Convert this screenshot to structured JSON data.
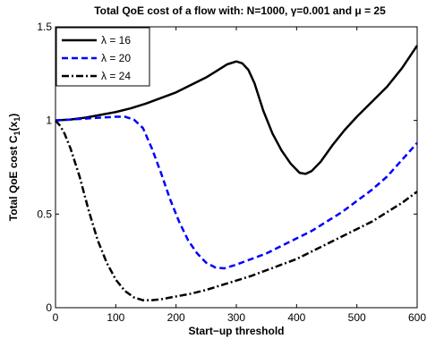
{
  "chart_data": {
    "type": "line",
    "title": "Total QoE cost of a flow with: N=1000, γ=0.001 and μ = 25",
    "xlabel": "Start−up threshold",
    "ylabel": "Total QoE cost C",
    "ylabel_sub": "1",
    "ylabel_arg": "(x",
    "ylabel_arg_sub": "1",
    "ylabel_close": ")",
    "xlim": [
      0,
      600
    ],
    "ylim": [
      0,
      1.5
    ],
    "xticks": [
      0,
      100,
      200,
      300,
      400,
      500,
      600
    ],
    "yticks": [
      0,
      0.5,
      1,
      1.5
    ],
    "xtick_labels": [
      "0",
      "100",
      "200",
      "300",
      "400",
      "500",
      "600"
    ],
    "ytick_labels": [
      "0",
      "0.5",
      "1",
      "1.5"
    ],
    "legend_position": "top-left",
    "series": [
      {
        "name": "λ = 16",
        "color": "#000000",
        "style": "solid",
        "points": [
          [
            0,
            1.0
          ],
          [
            25,
            1.005
          ],
          [
            50,
            1.015
          ],
          [
            75,
            1.03
          ],
          [
            100,
            1.045
          ],
          [
            125,
            1.065
          ],
          [
            150,
            1.09
          ],
          [
            175,
            1.12
          ],
          [
            200,
            1.15
          ],
          [
            225,
            1.19
          ],
          [
            250,
            1.23
          ],
          [
            270,
            1.27
          ],
          [
            285,
            1.3
          ],
          [
            300,
            1.315
          ],
          [
            310,
            1.305
          ],
          [
            320,
            1.27
          ],
          [
            330,
            1.2
          ],
          [
            345,
            1.05
          ],
          [
            360,
            0.93
          ],
          [
            375,
            0.84
          ],
          [
            390,
            0.77
          ],
          [
            405,
            0.72
          ],
          [
            415,
            0.715
          ],
          [
            425,
            0.73
          ],
          [
            440,
            0.78
          ],
          [
            460,
            0.87
          ],
          [
            480,
            0.95
          ],
          [
            500,
            1.02
          ],
          [
            525,
            1.1
          ],
          [
            550,
            1.18
          ],
          [
            575,
            1.28
          ],
          [
            600,
            1.4
          ]
        ]
      },
      {
        "name": "λ = 20",
        "color": "#0000ff",
        "style": "dashed",
        "points": [
          [
            0,
            1.0
          ],
          [
            25,
            1.005
          ],
          [
            50,
            1.01
          ],
          [
            75,
            1.015
          ],
          [
            100,
            1.02
          ],
          [
            115,
            1.02
          ],
          [
            130,
            1.005
          ],
          [
            145,
            0.96
          ],
          [
            160,
            0.85
          ],
          [
            175,
            0.72
          ],
          [
            190,
            0.58
          ],
          [
            205,
            0.46
          ],
          [
            220,
            0.36
          ],
          [
            235,
            0.29
          ],
          [
            250,
            0.24
          ],
          [
            265,
            0.215
          ],
          [
            280,
            0.21
          ],
          [
            300,
            0.23
          ],
          [
            325,
            0.26
          ],
          [
            350,
            0.29
          ],
          [
            375,
            0.33
          ],
          [
            400,
            0.37
          ],
          [
            425,
            0.41
          ],
          [
            450,
            0.46
          ],
          [
            475,
            0.51
          ],
          [
            500,
            0.57
          ],
          [
            525,
            0.63
          ],
          [
            550,
            0.7
          ],
          [
            575,
            0.79
          ],
          [
            600,
            0.88
          ]
        ]
      },
      {
        "name": "λ = 24",
        "color": "#000000",
        "style": "dashdot",
        "points": [
          [
            0,
            1.0
          ],
          [
            8,
            0.97
          ],
          [
            15,
            0.93
          ],
          [
            25,
            0.85
          ],
          [
            40,
            0.7
          ],
          [
            55,
            0.52
          ],
          [
            70,
            0.36
          ],
          [
            85,
            0.24
          ],
          [
            100,
            0.15
          ],
          [
            115,
            0.09
          ],
          [
            130,
            0.055
          ],
          [
            145,
            0.04
          ],
          [
            160,
            0.04
          ],
          [
            175,
            0.045
          ],
          [
            200,
            0.06
          ],
          [
            225,
            0.075
          ],
          [
            250,
            0.095
          ],
          [
            275,
            0.12
          ],
          [
            300,
            0.145
          ],
          [
            325,
            0.17
          ],
          [
            350,
            0.2
          ],
          [
            375,
            0.23
          ],
          [
            400,
            0.26
          ],
          [
            425,
            0.3
          ],
          [
            450,
            0.34
          ],
          [
            475,
            0.38
          ],
          [
            500,
            0.42
          ],
          [
            525,
            0.46
          ],
          [
            550,
            0.51
          ],
          [
            575,
            0.56
          ],
          [
            600,
            0.62
          ]
        ]
      }
    ]
  }
}
